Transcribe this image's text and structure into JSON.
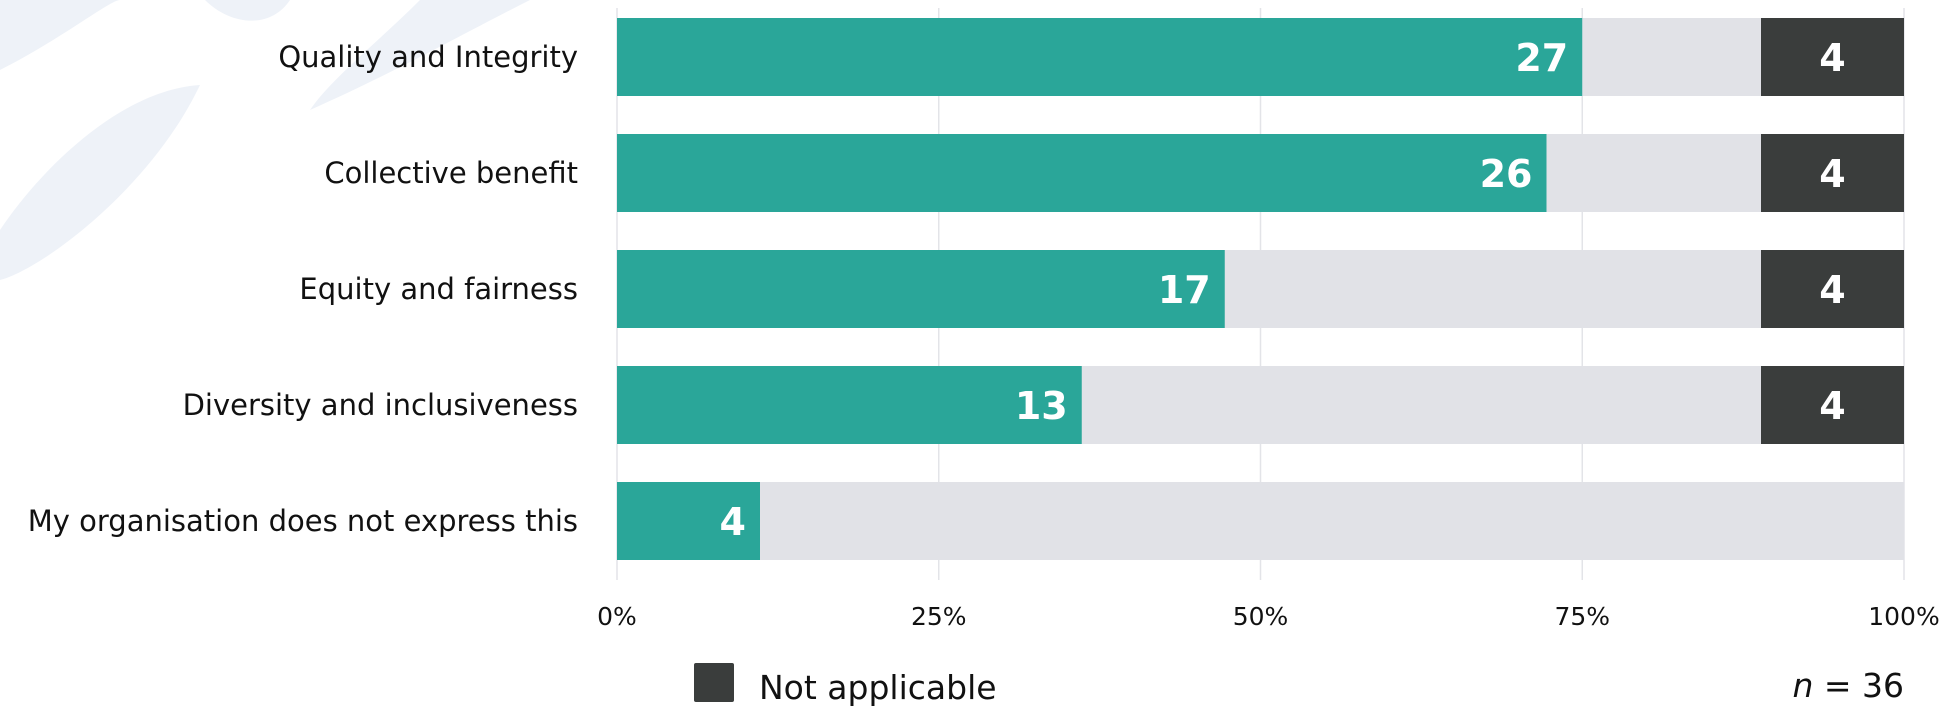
{
  "chart_data": {
    "type": "bar",
    "orientation": "horizontal",
    "stacked": true,
    "categories": [
      "Quality and Integrity",
      "Collective benefit",
      "Equity and fairness",
      "Diversity and inclusiveness",
      "My organisation does not express this"
    ],
    "total": 36,
    "series": [
      {
        "values": [
          27,
          26,
          17,
          13,
          4
        ],
        "color": "#2aa699"
      },
      {
        "name": "Not applicable",
        "values": [
          4,
          4,
          4,
          4,
          null
        ],
        "color": "#3a3d3c"
      }
    ],
    "remainder_color": "#e1e2e7",
    "x_ticks": [
      "0%",
      "25%",
      "50%",
      "75%",
      "100%"
    ],
    "xlim": [
      0,
      100
    ],
    "grid": true,
    "legend": {
      "position": "bottom-left",
      "entries": [
        "Not applicable"
      ]
    },
    "n_annotation": {
      "italic": "n",
      "text": " = 36"
    }
  }
}
